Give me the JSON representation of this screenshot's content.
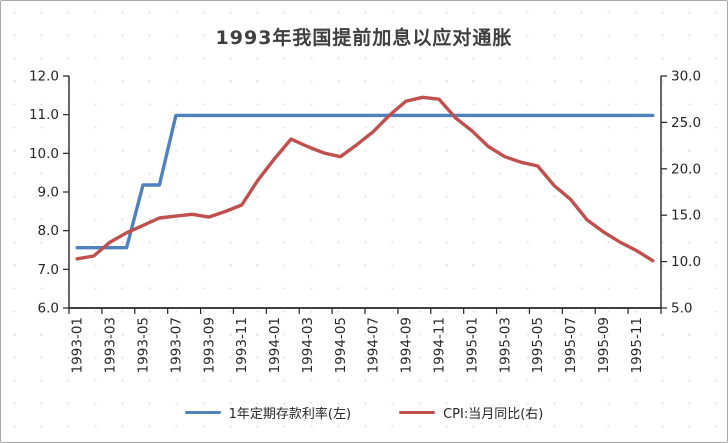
{
  "chart_data": {
    "type": "line",
    "title": "1993年我国提前加息以应对通胀",
    "x": [
      "1993-01",
      "1993-02",
      "1993-03",
      "1993-04",
      "1993-05",
      "1993-06",
      "1993-07",
      "1993-08",
      "1993-09",
      "1993-10",
      "1993-11",
      "1993-12",
      "1994-01",
      "1994-02",
      "1994-03",
      "1994-04",
      "1994-05",
      "1994-06",
      "1994-07",
      "1994-08",
      "1994-09",
      "1994-10",
      "1994-11",
      "1994-12",
      "1995-01",
      "1995-02",
      "1995-03",
      "1995-04",
      "1995-05",
      "1995-06",
      "1995-07",
      "1995-08",
      "1995-09",
      "1995-10",
      "1995-11",
      "1995-12"
    ],
    "x_label_interval": 2,
    "series": [
      {
        "name": "1年定期存款利率(左)",
        "axis": "left",
        "color": "#4f81bd",
        "values": [
          7.56,
          7.56,
          7.56,
          7.56,
          9.18,
          9.18,
          10.98,
          10.98,
          10.98,
          10.98,
          10.98,
          10.98,
          10.98,
          10.98,
          10.98,
          10.98,
          10.98,
          10.98,
          10.98,
          10.98,
          10.98,
          10.98,
          10.98,
          10.98,
          10.98,
          10.98,
          10.98,
          10.98,
          10.98,
          10.98,
          10.98,
          10.98,
          10.98,
          10.98,
          10.98,
          10.98
        ]
      },
      {
        "name": "CPI:当月同比(右)",
        "axis": "right",
        "color": "#c0504d",
        "values": [
          10.3,
          10.6,
          12.1,
          13.1,
          13.9,
          14.7,
          14.9,
          15.1,
          14.8,
          15.4,
          16.1,
          18.8,
          21.1,
          23.2,
          22.4,
          21.7,
          21.3,
          22.6,
          24.0,
          25.8,
          27.3,
          27.7,
          27.5,
          25.5,
          24.1,
          22.4,
          21.3,
          20.7,
          20.3,
          18.2,
          16.7,
          14.5,
          13.2,
          12.1,
          11.2,
          10.1
        ]
      }
    ],
    "left_axis": {
      "min": 6,
      "max": 12,
      "ticks": [
        "12.0",
        "11.0",
        "10.0",
        "9.0",
        "8.0",
        "7.0",
        "6.0"
      ]
    },
    "right_axis": {
      "min": 5,
      "max": 30,
      "ticks": [
        "30.0",
        "25.0",
        "20.0",
        "15.0",
        "10.0",
        "5.0"
      ]
    },
    "grid": false,
    "legend_position": "bottom"
  }
}
